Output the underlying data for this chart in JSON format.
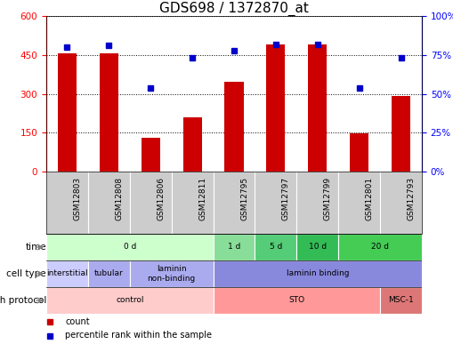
{
  "title": "GDS698 / 1372870_at",
  "samples": [
    "GSM12803",
    "GSM12808",
    "GSM12806",
    "GSM12811",
    "GSM12795",
    "GSM12797",
    "GSM12799",
    "GSM12801",
    "GSM12793"
  ],
  "counts": [
    455,
    455,
    132,
    210,
    345,
    490,
    490,
    148,
    290
  ],
  "percentiles": [
    80,
    81,
    54,
    73,
    78,
    82,
    82,
    54,
    73
  ],
  "ylim_left": [
    0,
    600
  ],
  "ylim_right": [
    0,
    100
  ],
  "yticks_left": [
    0,
    150,
    300,
    450,
    600
  ],
  "yticks_right": [
    0,
    25,
    50,
    75,
    100
  ],
  "bar_color": "#cc0000",
  "dot_color": "#0000cc",
  "title_fontsize": 11,
  "time_row": {
    "label": "time",
    "groups": [
      {
        "text": "0 d",
        "start": 0,
        "end": 3,
        "color": "#ccffcc"
      },
      {
        "text": "1 d",
        "start": 4,
        "end": 4,
        "color": "#88dd99"
      },
      {
        "text": "5 d",
        "start": 5,
        "end": 5,
        "color": "#55cc77"
      },
      {
        "text": "10 d",
        "start": 6,
        "end": 6,
        "color": "#33bb55"
      },
      {
        "text": "20 d",
        "start": 7,
        "end": 8,
        "color": "#44cc55"
      }
    ]
  },
  "cell_type_row": {
    "label": "cell type",
    "groups": [
      {
        "text": "interstitial",
        "start": 0,
        "end": 0,
        "color": "#ccccff"
      },
      {
        "text": "tubular",
        "start": 1,
        "end": 1,
        "color": "#aaaaee"
      },
      {
        "text": "laminin\nnon-binding",
        "start": 2,
        "end": 3,
        "color": "#aaaaee"
      },
      {
        "text": "laminin binding",
        "start": 4,
        "end": 8,
        "color": "#8888dd"
      }
    ]
  },
  "growth_protocol_row": {
    "label": "growth protocol",
    "groups": [
      {
        "text": "control",
        "start": 0,
        "end": 3,
        "color": "#ffcccc"
      },
      {
        "text": "STO",
        "start": 4,
        "end": 7,
        "color": "#ff9999"
      },
      {
        "text": "MSC-1",
        "start": 8,
        "end": 8,
        "color": "#dd7777"
      }
    ]
  },
  "legend": [
    {
      "label": "count",
      "color": "#cc0000"
    },
    {
      "label": "percentile rank within the sample",
      "color": "#0000cc"
    }
  ],
  "fig_width": 5.1,
  "fig_height": 4.05,
  "dpi": 100
}
